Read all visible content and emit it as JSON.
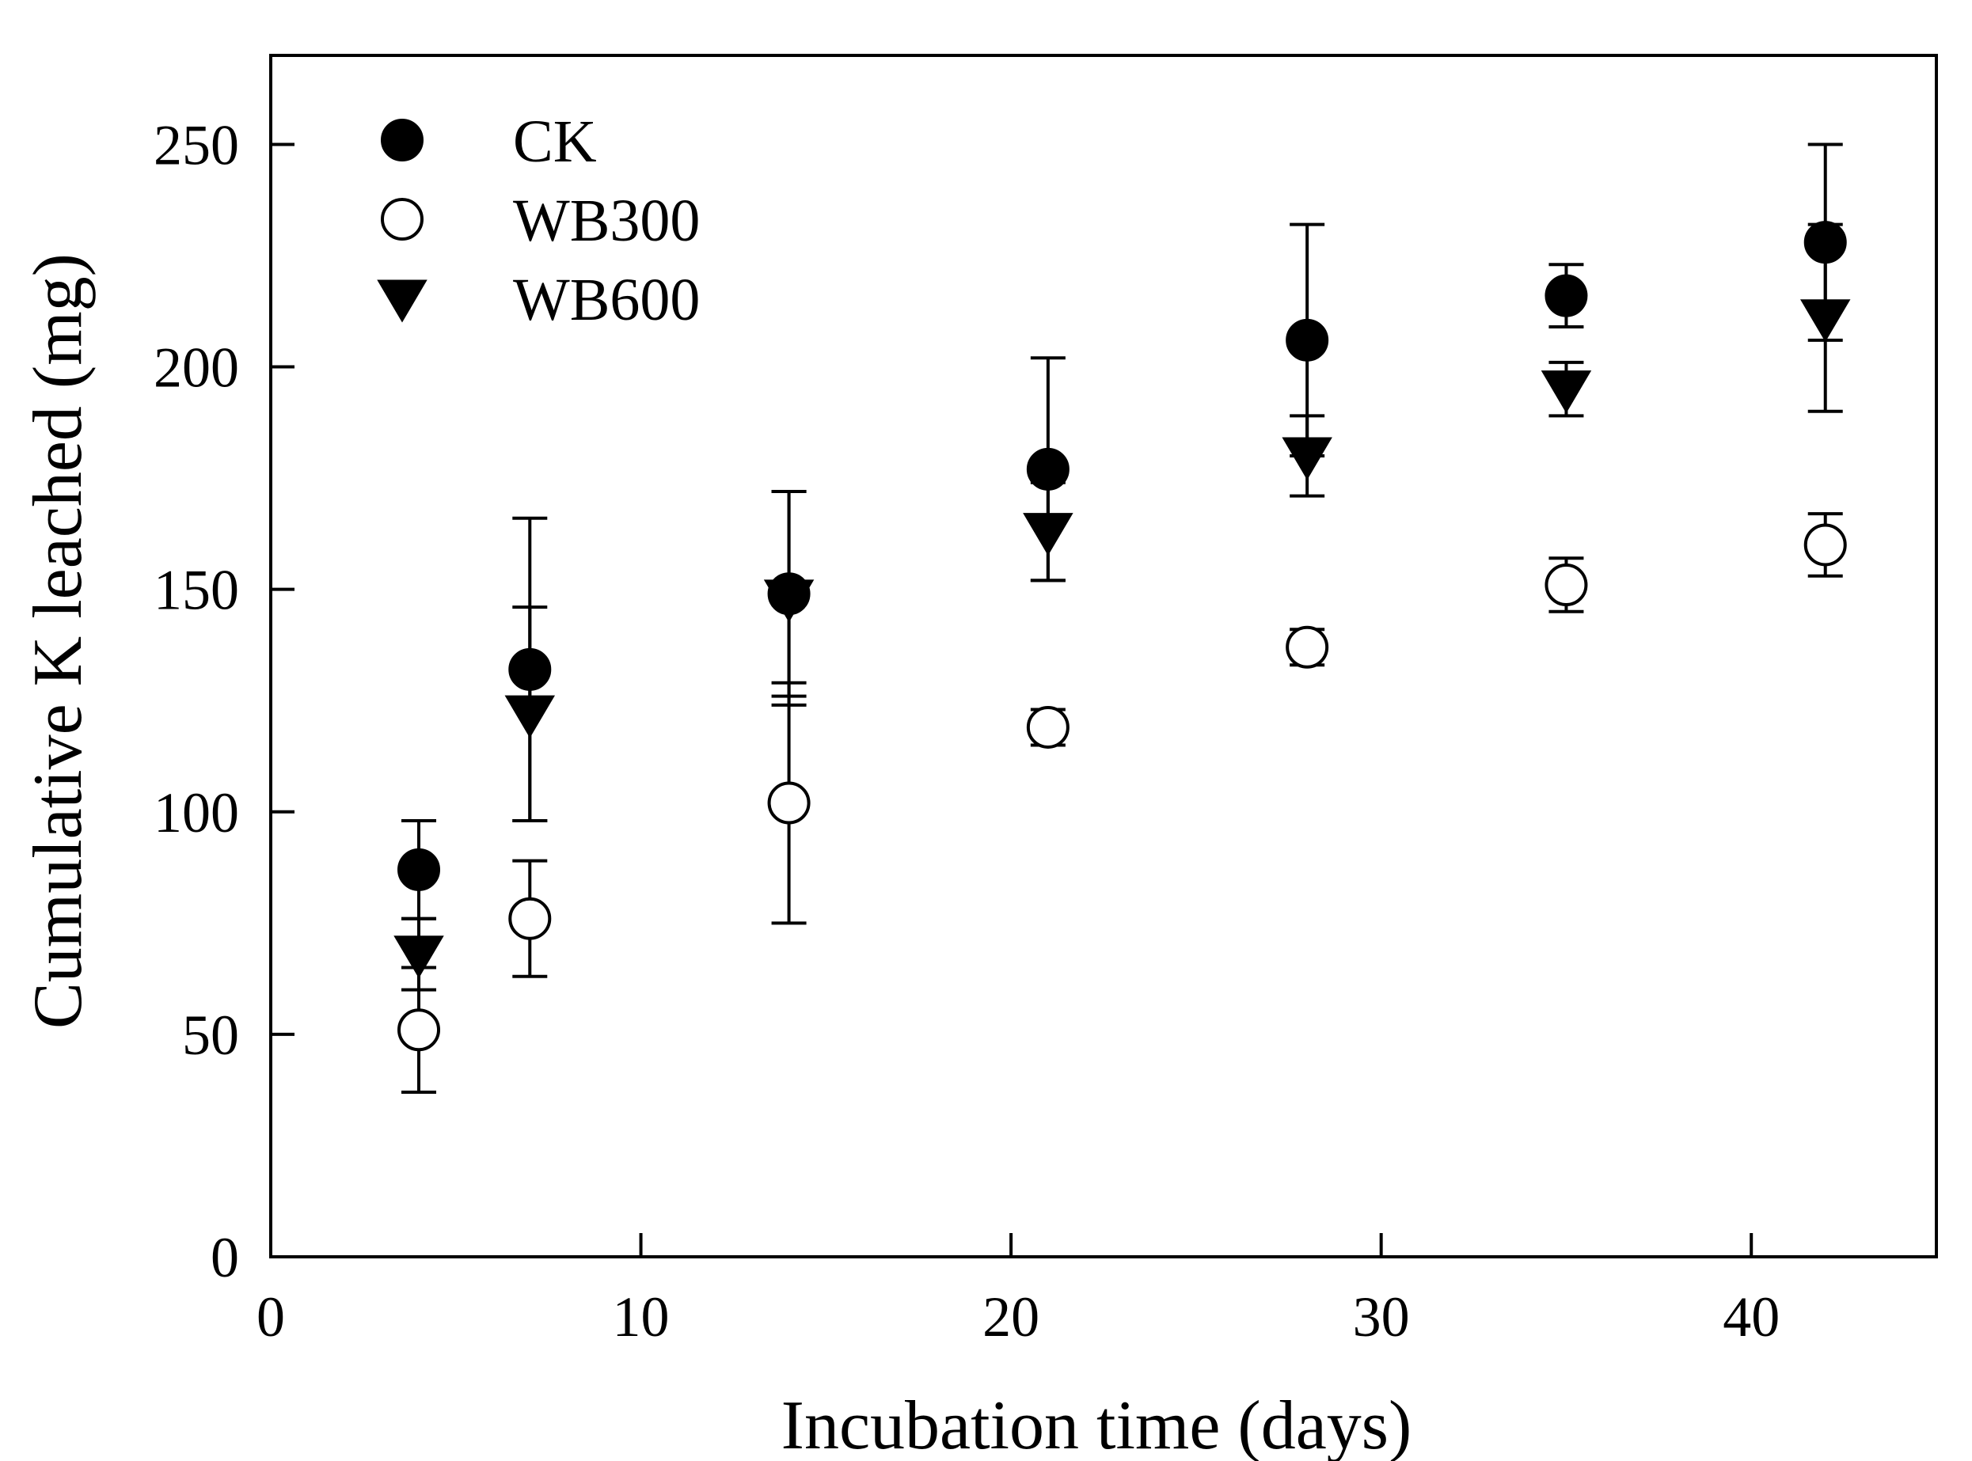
{
  "chart_data": {
    "type": "scatter",
    "title": "",
    "xlabel": "Incubation time (days)",
    "ylabel": "Cumulative K leached (mg)",
    "xlim": [
      0,
      45
    ],
    "ylim": [
      0,
      270
    ],
    "xticks": [
      0,
      10,
      20,
      30,
      40
    ],
    "yticks": [
      0,
      50,
      100,
      150,
      200,
      250
    ],
    "xtick_labels": [
      "0",
      "10",
      "20",
      "30",
      "40"
    ],
    "ytick_labels": [
      "0",
      "50",
      "100",
      "150",
      "200",
      "250"
    ],
    "grid": false,
    "legend_position": "top-left",
    "x": [
      4,
      7,
      14,
      21,
      28,
      35,
      42
    ],
    "series": [
      {
        "name": "CK",
        "marker": "filled-circle",
        "values": [
          87,
          132,
          149,
          177,
          206,
          216,
          228
        ],
        "errors": [
          11,
          34,
          23,
          25,
          26,
          7,
          22
        ]
      },
      {
        "name": "WB300",
        "marker": "open-circle",
        "values": [
          51,
          76,
          102,
          119,
          137,
          151,
          160
        ],
        "errors": [
          14,
          13,
          27,
          4,
          4,
          6,
          7
        ]
      },
      {
        "name": "WB600",
        "marker": "filled-triangle-down",
        "values": [
          68,
          122,
          148,
          163,
          180,
          195,
          211
        ],
        "errors": [
          8,
          24,
          24,
          11,
          9,
          6,
          21
        ]
      }
    ],
    "colors": {
      "marker": "#000000",
      "background": "#ffffff"
    }
  }
}
